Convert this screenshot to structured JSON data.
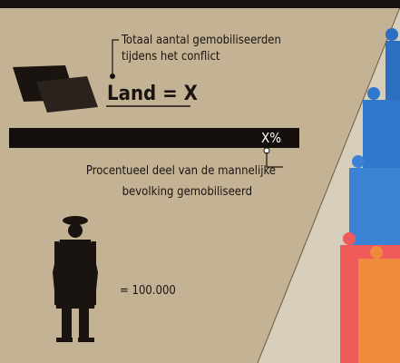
{
  "legend": {
    "total_label": [
      "Totaal aantal gemobiliseerden",
      "tijdens het conflict"
    ],
    "country_label": "Land = X",
    "percent_label": "X%",
    "percent_caption": [
      "Procentueel deel van de mannelijke",
      "bevolking gemobiliseerd"
    ],
    "unit_label": "= 100.000"
  }
}
